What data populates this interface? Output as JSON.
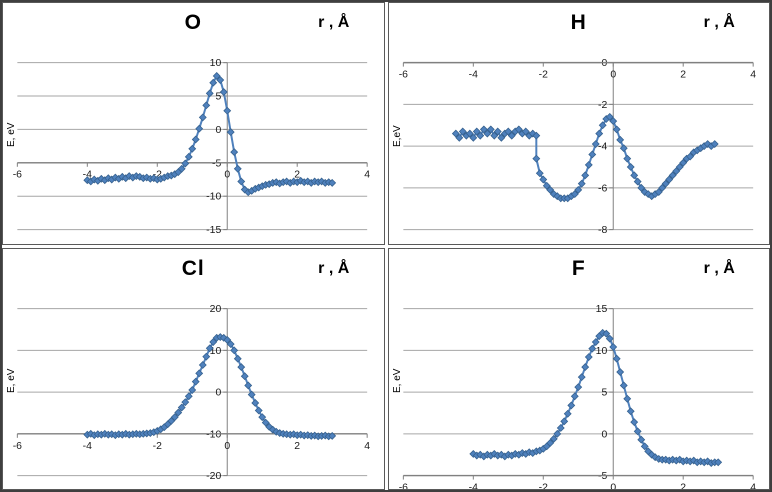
{
  "figure": {
    "panels": [
      "O",
      "H",
      "Cl",
      "F"
    ]
  },
  "colors": {
    "marker": "#4F81BD",
    "marker_border": "#36618E",
    "gridline": "#A6A6A6",
    "axis": "#808080"
  },
  "chart_data": [
    {
      "type": "scatter",
      "element": "O",
      "r_label": "r , Å",
      "ylabel": "E, eV",
      "xlim": [
        -6,
        4
      ],
      "ylim": [
        -15,
        10
      ],
      "x_ticks": [
        -6,
        -4,
        -2,
        0,
        2,
        4
      ],
      "y_ticks": [
        -15,
        -10,
        -5,
        0,
        5,
        10
      ],
      "x_axis_cross": -5,
      "color": "#4F81BD",
      "marker": "diamond",
      "points": [
        [
          -4,
          -7.6
        ],
        [
          -3.9,
          -7.8
        ],
        [
          -3.8,
          -7.5
        ],
        [
          -3.7,
          -7.7
        ],
        [
          -3.6,
          -7.4
        ],
        [
          -3.5,
          -7.6
        ],
        [
          -3.4,
          -7.3
        ],
        [
          -3.3,
          -7.5
        ],
        [
          -3.2,
          -7.2
        ],
        [
          -3.1,
          -7.4
        ],
        [
          -3,
          -7.1
        ],
        [
          -2.9,
          -7.3
        ],
        [
          -2.8,
          -7.0
        ],
        [
          -2.7,
          -7.2
        ],
        [
          -2.6,
          -7.0
        ],
        [
          -2.5,
          -7.1
        ],
        [
          -2.4,
          -7.3
        ],
        [
          -2.3,
          -7.2
        ],
        [
          -2.2,
          -7.4
        ],
        [
          -2.1,
          -7.3
        ],
        [
          -2,
          -7.5
        ],
        [
          -1.9,
          -7.4
        ],
        [
          -1.8,
          -7.2
        ],
        [
          -1.7,
          -7.0
        ],
        [
          -1.6,
          -6.9
        ],
        [
          -1.5,
          -6.7
        ],
        [
          -1.4,
          -6.4
        ],
        [
          -1.3,
          -5.9
        ],
        [
          -1.2,
          -5.1
        ],
        [
          -1.1,
          -4.1
        ],
        [
          -1,
          -2.9
        ],
        [
          -0.9,
          -1.5
        ],
        [
          -0.8,
          0.1
        ],
        [
          -0.7,
          1.8
        ],
        [
          -0.6,
          3.6
        ],
        [
          -0.5,
          5.4
        ],
        [
          -0.4,
          7.0
        ],
        [
          -0.3,
          8.0
        ],
        [
          -0.2,
          7.4
        ],
        [
          -0.1,
          5.6
        ],
        [
          0,
          2.8
        ],
        [
          0.1,
          -0.4
        ],
        [
          0.2,
          -3.4
        ],
        [
          0.3,
          -5.9
        ],
        [
          0.4,
          -7.8
        ],
        [
          0.5,
          -9.0
        ],
        [
          0.6,
          -9.4
        ],
        [
          0.7,
          -9.2
        ],
        [
          0.8,
          -8.9
        ],
        [
          0.9,
          -8.7
        ],
        [
          1,
          -8.5
        ],
        [
          1.1,
          -8.3
        ],
        [
          1.2,
          -8.2
        ],
        [
          1.3,
          -8.0
        ],
        [
          1.4,
          -7.9
        ],
        [
          1.5,
          -8.1
        ],
        [
          1.6,
          -7.9
        ],
        [
          1.7,
          -7.8
        ],
        [
          1.8,
          -8.0
        ],
        [
          1.9,
          -7.8
        ],
        [
          2,
          -7.9
        ],
        [
          2.1,
          -7.7
        ],
        [
          2.2,
          -7.9
        ],
        [
          2.3,
          -7.8
        ],
        [
          2.4,
          -8.0
        ],
        [
          2.5,
          -7.8
        ],
        [
          2.6,
          -7.9
        ],
        [
          2.7,
          -7.8
        ],
        [
          2.8,
          -8.0
        ],
        [
          2.9,
          -7.9
        ],
        [
          3,
          -8.0
        ]
      ]
    },
    {
      "type": "scatter",
      "element": "H",
      "r_label": "r , Å",
      "ylabel": "E,eV",
      "xlim": [
        -6,
        4
      ],
      "ylim": [
        -8,
        0
      ],
      "x_ticks": [
        -6,
        -4,
        -2,
        0,
        2,
        4
      ],
      "y_ticks": [
        -8,
        -6,
        -4,
        -2,
        0
      ],
      "x_axis_cross": 0,
      "color": "#4F81BD",
      "marker": "diamond",
      "points": [
        [
          -4.5,
          -3.4
        ],
        [
          -4.4,
          -3.6
        ],
        [
          -4.3,
          -3.3
        ],
        [
          -4.2,
          -3.5
        ],
        [
          -4.1,
          -3.4
        ],
        [
          -4,
          -3.6
        ],
        [
          -3.9,
          -3.3
        ],
        [
          -3.8,
          -3.5
        ],
        [
          -3.7,
          -3.2
        ],
        [
          -3.6,
          -3.4
        ],
        [
          -3.5,
          -3.2
        ],
        [
          -3.4,
          -3.5
        ],
        [
          -3.3,
          -3.3
        ],
        [
          -3.2,
          -3.6
        ],
        [
          -3.1,
          -3.4
        ],
        [
          -3,
          -3.3
        ],
        [
          -2.9,
          -3.5
        ],
        [
          -2.8,
          -3.3
        ],
        [
          -2.7,
          -3.2
        ],
        [
          -2.6,
          -3.4
        ],
        [
          -2.5,
          -3.3
        ],
        [
          -2.4,
          -3.5
        ],
        [
          -2.3,
          -3.4
        ],
        [
          -2.2,
          -3.5
        ],
        [
          -2.2,
          -4.6
        ],
        [
          -2.1,
          -5.3
        ],
        [
          -2,
          -5.6
        ],
        [
          -1.9,
          -5.9
        ],
        [
          -1.8,
          -6.1
        ],
        [
          -1.7,
          -6.3
        ],
        [
          -1.6,
          -6.4
        ],
        [
          -1.5,
          -6.5
        ],
        [
          -1.4,
          -6.5
        ],
        [
          -1.3,
          -6.5
        ],
        [
          -1.2,
          -6.4
        ],
        [
          -1.1,
          -6.3
        ],
        [
          -1,
          -6.1
        ],
        [
          -0.9,
          -5.8
        ],
        [
          -0.8,
          -5.4
        ],
        [
          -0.7,
          -4.9
        ],
        [
          -0.6,
          -4.4
        ],
        [
          -0.5,
          -3.9
        ],
        [
          -0.4,
          -3.4
        ],
        [
          -0.3,
          -3.0
        ],
        [
          -0.2,
          -2.7
        ],
        [
          -0.1,
          -2.6
        ],
        [
          0,
          -2.8
        ],
        [
          0.1,
          -3.2
        ],
        [
          0.2,
          -3.7
        ],
        [
          0.3,
          -4.1
        ],
        [
          0.4,
          -4.6
        ],
        [
          0.5,
          -5.0
        ],
        [
          0.6,
          -5.4
        ],
        [
          0.7,
          -5.7
        ],
        [
          0.8,
          -6.0
        ],
        [
          0.9,
          -6.2
        ],
        [
          1,
          -6.3
        ],
        [
          1.1,
          -6.4
        ],
        [
          1.2,
          -6.3
        ],
        [
          1.3,
          -6.2
        ],
        [
          1.4,
          -6.0
        ],
        [
          1.5,
          -5.8
        ],
        [
          1.6,
          -5.6
        ],
        [
          1.7,
          -5.4
        ],
        [
          1.8,
          -5.2
        ],
        [
          1.9,
          -5.0
        ],
        [
          2,
          -4.8
        ],
        [
          2.1,
          -4.6
        ],
        [
          2.2,
          -4.5
        ],
        [
          2.3,
          -4.3
        ],
        [
          2.4,
          -4.2
        ],
        [
          2.5,
          -4.1
        ],
        [
          2.6,
          -4.0
        ],
        [
          2.7,
          -3.9
        ],
        [
          2.8,
          -4.0
        ],
        [
          2.9,
          -3.9
        ]
      ]
    },
    {
      "type": "scatter",
      "element": "Cl",
      "r_label": "r , Å",
      "ylabel": "E, eV",
      "xlim": [
        -6,
        4
      ],
      "ylim": [
        -20,
        20
      ],
      "x_ticks": [
        -6,
        -4,
        -2,
        0,
        2,
        4
      ],
      "y_ticks": [
        -20,
        -10,
        0,
        10,
        20
      ],
      "x_axis_cross": -10,
      "color": "#4F81BD",
      "marker": "diamond",
      "points": [
        [
          -4,
          -10.2
        ],
        [
          -3.9,
          -10.0
        ],
        [
          -3.8,
          -10.3
        ],
        [
          -3.7,
          -10.1
        ],
        [
          -3.6,
          -10.2
        ],
        [
          -3.5,
          -10.0
        ],
        [
          -3.4,
          -10.2
        ],
        [
          -3.3,
          -10.1
        ],
        [
          -3.2,
          -10.3
        ],
        [
          -3.1,
          -10.1
        ],
        [
          -3,
          -10.2
        ],
        [
          -2.9,
          -10.0
        ],
        [
          -2.8,
          -10.2
        ],
        [
          -2.7,
          -10.1
        ],
        [
          -2.6,
          -10.0
        ],
        [
          -2.5,
          -10.1
        ],
        [
          -2.4,
          -10.0
        ],
        [
          -2.3,
          -9.9
        ],
        [
          -2.2,
          -9.8
        ],
        [
          -2.1,
          -9.6
        ],
        [
          -2,
          -9.3
        ],
        [
          -1.9,
          -8.9
        ],
        [
          -1.8,
          -8.4
        ],
        [
          -1.7,
          -7.7
        ],
        [
          -1.6,
          -6.9
        ],
        [
          -1.5,
          -6.0
        ],
        [
          -1.4,
          -4.9
        ],
        [
          -1.3,
          -3.7
        ],
        [
          -1.2,
          -2.4
        ],
        [
          -1.1,
          -1.0
        ],
        [
          -1,
          0.5
        ],
        [
          -0.9,
          2.5
        ],
        [
          -0.8,
          4.5
        ],
        [
          -0.7,
          6.5
        ],
        [
          -0.6,
          8.5
        ],
        [
          -0.5,
          10.5
        ],
        [
          -0.4,
          12.0
        ],
        [
          -0.3,
          13.0
        ],
        [
          -0.2,
          13.2
        ],
        [
          -0.1,
          13.0
        ],
        [
          0,
          12.5
        ],
        [
          0.1,
          11.5
        ],
        [
          0.2,
          10.0
        ],
        [
          0.3,
          8.0
        ],
        [
          0.4,
          6.0
        ],
        [
          0.5,
          3.8
        ],
        [
          0.6,
          1.6
        ],
        [
          0.7,
          -0.6
        ],
        [
          0.8,
          -2.6
        ],
        [
          0.9,
          -4.4
        ],
        [
          1,
          -6.0
        ],
        [
          1.1,
          -7.3
        ],
        [
          1.2,
          -8.3
        ],
        [
          1.3,
          -9.0
        ],
        [
          1.4,
          -9.5
        ],
        [
          1.5,
          -9.8
        ],
        [
          1.6,
          -10.0
        ],
        [
          1.7,
          -10.1
        ],
        [
          1.8,
          -10.2
        ],
        [
          1.9,
          -10.1
        ],
        [
          2,
          -10.3
        ],
        [
          2.1,
          -10.2
        ],
        [
          2.2,
          -10.4
        ],
        [
          2.3,
          -10.3
        ],
        [
          2.4,
          -10.5
        ],
        [
          2.5,
          -10.4
        ],
        [
          2.6,
          -10.6
        ],
        [
          2.7,
          -10.5
        ],
        [
          2.8,
          -10.4
        ],
        [
          2.9,
          -10.6
        ],
        [
          3,
          -10.5
        ]
      ]
    },
    {
      "type": "scatter",
      "element": "F",
      "r_label": "r , Å",
      "ylabel": "E, eV",
      "xlim": [
        -6,
        4
      ],
      "ylim": [
        -5,
        15
      ],
      "x_ticks": [
        -6,
        -4,
        -2,
        0,
        2,
        4
      ],
      "y_ticks": [
        -5,
        0,
        5,
        10,
        15
      ],
      "x_axis_cross": -5,
      "color": "#4F81BD",
      "marker": "diamond",
      "points": [
        [
          -4,
          -2.4
        ],
        [
          -3.9,
          -2.6
        ],
        [
          -3.8,
          -2.5
        ],
        [
          -3.7,
          -2.7
        ],
        [
          -3.6,
          -2.5
        ],
        [
          -3.5,
          -2.6
        ],
        [
          -3.4,
          -2.4
        ],
        [
          -3.3,
          -2.6
        ],
        [
          -3.2,
          -2.5
        ],
        [
          -3.1,
          -2.7
        ],
        [
          -3,
          -2.5
        ],
        [
          -2.9,
          -2.6
        ],
        [
          -2.8,
          -2.4
        ],
        [
          -2.7,
          -2.5
        ],
        [
          -2.6,
          -2.3
        ],
        [
          -2.5,
          -2.4
        ],
        [
          -2.4,
          -2.2
        ],
        [
          -2.3,
          -2.3
        ],
        [
          -2.2,
          -2.1
        ],
        [
          -2.1,
          -2.0
        ],
        [
          -2,
          -1.8
        ],
        [
          -1.9,
          -1.5
        ],
        [
          -1.8,
          -1.1
        ],
        [
          -1.7,
          -0.6
        ],
        [
          -1.6,
          0.0
        ],
        [
          -1.5,
          0.7
        ],
        [
          -1.4,
          1.5
        ],
        [
          -1.3,
          2.4
        ],
        [
          -1.2,
          3.4
        ],
        [
          -1.1,
          4.5
        ],
        [
          -1,
          5.6
        ],
        [
          -0.9,
          6.8
        ],
        [
          -0.8,
          8.0
        ],
        [
          -0.7,
          9.2
        ],
        [
          -0.6,
          10.2
        ],
        [
          -0.5,
          11.0
        ],
        [
          -0.4,
          11.7
        ],
        [
          -0.3,
          12.1
        ],
        [
          -0.2,
          12.0
        ],
        [
          -0.1,
          11.4
        ],
        [
          0,
          10.4
        ],
        [
          0.1,
          9.0
        ],
        [
          0.2,
          7.4
        ],
        [
          0.3,
          5.8
        ],
        [
          0.4,
          4.2
        ],
        [
          0.5,
          2.7
        ],
        [
          0.6,
          1.4
        ],
        [
          0.7,
          0.3
        ],
        [
          0.8,
          -0.7
        ],
        [
          0.9,
          -1.5
        ],
        [
          1,
          -2.1
        ],
        [
          1.1,
          -2.5
        ],
        [
          1.2,
          -2.8
        ],
        [
          1.3,
          -3.0
        ],
        [
          1.4,
          -3.1
        ],
        [
          1.5,
          -3.1
        ],
        [
          1.6,
          -3.2
        ],
        [
          1.7,
          -3.1
        ],
        [
          1.8,
          -3.2
        ],
        [
          1.9,
          -3.1
        ],
        [
          2,
          -3.3
        ],
        [
          2.1,
          -3.2
        ],
        [
          2.2,
          -3.3
        ],
        [
          2.3,
          -3.2
        ],
        [
          2.4,
          -3.4
        ],
        [
          2.5,
          -3.3
        ],
        [
          2.6,
          -3.4
        ],
        [
          2.7,
          -3.3
        ],
        [
          2.8,
          -3.5
        ],
        [
          2.9,
          -3.4
        ],
        [
          3,
          -3.4
        ]
      ]
    }
  ]
}
